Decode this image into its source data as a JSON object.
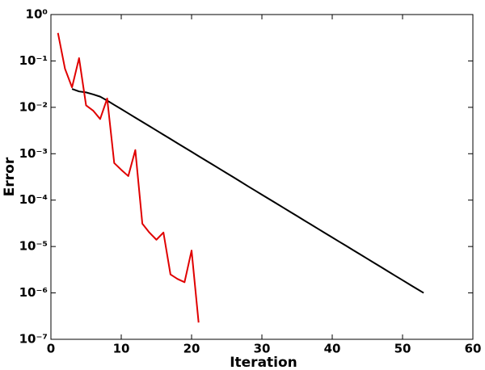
{
  "chart_data": {
    "type": "line",
    "xlabel": "Iteration",
    "ylabel": "Error",
    "log_y": true,
    "xlim": [
      0,
      60
    ],
    "xticks": [
      0,
      10,
      20,
      30,
      40,
      50,
      60
    ],
    "ylim": [
      1e-07,
      1
    ],
    "yticks": [
      {
        "value": 1e-07,
        "label": "10⁻⁷"
      },
      {
        "value": 1e-06,
        "label": "10⁻⁶"
      },
      {
        "value": 1e-05,
        "label": "10⁻⁵"
      },
      {
        "value": 0.0001,
        "label": "10⁻⁴"
      },
      {
        "value": 0.001,
        "label": "10⁻³"
      },
      {
        "value": 0.01,
        "label": "10⁻²"
      },
      {
        "value": 0.1,
        "label": "10⁻¹"
      },
      {
        "value": 1,
        "label": "10⁰"
      }
    ],
    "series": [
      {
        "color": "#000000",
        "x": [
          3,
          4,
          5,
          6,
          7,
          8,
          9,
          10,
          11,
          12,
          13,
          14,
          15,
          16,
          17,
          18,
          19,
          20,
          21,
          22,
          23,
          24,
          25,
          26,
          27,
          28,
          29,
          30,
          31,
          32,
          33,
          34,
          35,
          36,
          37,
          38,
          39,
          40,
          41,
          42,
          43,
          44,
          45,
          46,
          47,
          48,
          49,
          50,
          51,
          52,
          53
        ],
        "values": [
          0.025,
          0.022,
          0.021,
          0.019,
          0.017,
          0.014,
          0.0113,
          0.00917,
          0.00742,
          0.006,
          0.00485,
          0.00393,
          0.00318,
          0.00257,
          0.00208,
          0.00168,
          0.00136,
          0.0011,
          0.000889,
          0.000719,
          0.000582,
          0.000471,
          0.000381,
          0.000308,
          0.000249,
          0.0002,
          0.000162,
          0.000131,
          0.000106,
          8.58e-05,
          6.94e-05,
          5.61e-05,
          4.54e-05,
          3.67e-05,
          2.97e-05,
          2.4e-05,
          1.94e-05,
          1.57e-05,
          1.27e-05,
          1.03e-05,
          8.32e-06,
          6.73e-06,
          5.44e-06,
          4.4e-06,
          3.56e-06,
          2.87e-06,
          2.32e-06,
          1.88e-06,
          1.52e-06,
          1.23e-06,
          1e-06
        ]
      },
      {
        "color": "#e00000",
        "x": [
          1,
          2,
          3,
          4,
          5,
          6,
          7,
          8,
          9,
          10,
          11,
          12,
          13,
          14,
          15,
          16,
          17,
          18,
          19,
          20,
          21
        ],
        "values": [
          0.4,
          0.068,
          0.027,
          0.115,
          0.011,
          0.0085,
          0.0056,
          0.0155,
          0.00063,
          0.00045,
          0.00033,
          0.0012,
          3.1e-05,
          2e-05,
          1.4e-05,
          2e-05,
          2.5e-06,
          2e-06,
          1.7e-06,
          8.2e-06,
          2.3e-07
        ]
      }
    ]
  }
}
